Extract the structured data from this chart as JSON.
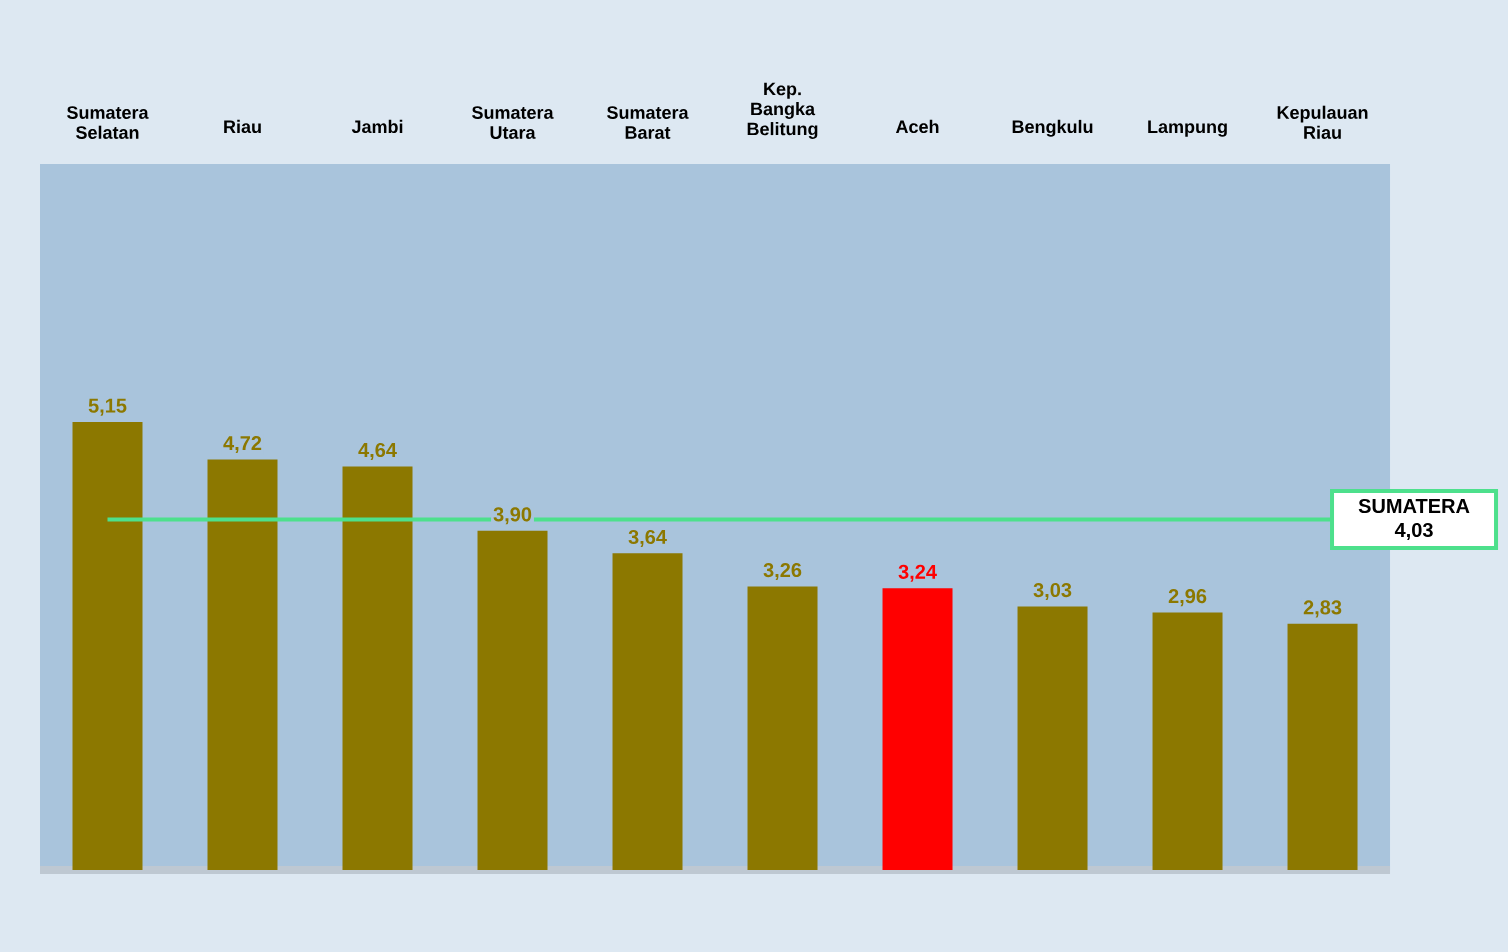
{
  "chart_data": {
    "type": "bar",
    "categories": [
      "Sumatera Selatan",
      "Riau",
      "Jambi",
      "Sumatera Utara",
      "Sumatera Barat",
      "Kep. Bangka Belitung",
      "Aceh",
      "Bengkulu",
      "Lampung",
      "Kepulauan Riau"
    ],
    "values": [
      5.15,
      4.72,
      4.64,
      3.9,
      3.64,
      3.26,
      3.24,
      3.03,
      2.96,
      2.83
    ],
    "value_labels": [
      "5,15",
      "4,72",
      "4,64",
      "3,90",
      "3,64",
      "3,26",
      "3,24",
      "3,03",
      "2,96",
      "2,83"
    ],
    "colors": [
      "#8c7800",
      "#8c7800",
      "#8c7800",
      "#8c7800",
      "#8c7800",
      "#8c7800",
      "#ff0000",
      "#8c7800",
      "#8c7800",
      "#8c7800"
    ],
    "ref_lines": [
      {
        "axis": "y",
        "value": 4.03,
        "label": "SUMATERA 4,03",
        "color": "#4de08c"
      }
    ]
  }
}
